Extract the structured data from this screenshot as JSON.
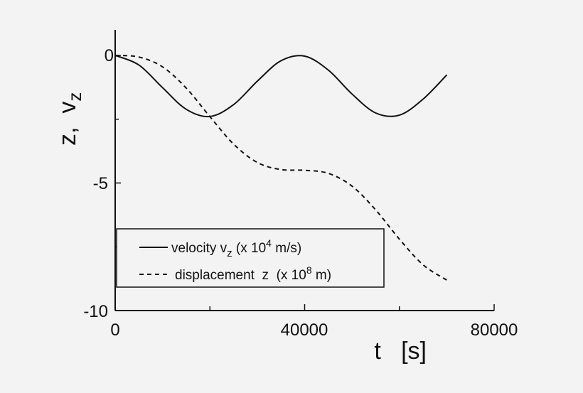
{
  "chart_data": {
    "type": "line",
    "title": "",
    "xlabel": "t   [s]",
    "ylabel": "z,  v",
    "ylabel_sub": "z",
    "xlim": [
      0,
      80000
    ],
    "ylim": [
      -10,
      1
    ],
    "xticks": [
      0,
      40000,
      80000
    ],
    "xtick_labels": [
      "0",
      "40000",
      "80000"
    ],
    "yticks": [
      0,
      -5,
      -10
    ],
    "ytick_labels": [
      "0",
      "-5",
      "-10"
    ],
    "grid": false,
    "legend_placement": "bottom-left",
    "x": [
      0,
      5000,
      10000,
      15000,
      20000,
      25000,
      30000,
      35000,
      40000,
      45000,
      50000,
      55000,
      60000,
      65000,
      70000
    ],
    "series": [
      {
        "name": "velocity v_z (x 10^4 m/s)",
        "legend": {
          "text": "velocity v",
          "sub": "z",
          "rest": " (x 10",
          "sup": "4",
          "tail": " m/s)"
        },
        "style": "solid",
        "color": "#111111",
        "values": [
          0,
          -0.374,
          -1.262,
          -2.112,
          -2.393,
          -1.928,
          -1.01,
          -0.21,
          -0.027,
          -0.575,
          -1.513,
          -2.256,
          -2.341,
          -1.713,
          -0.766
        ]
      },
      {
        "name": "displacement z (x 10^8 m)",
        "legend": {
          "text": "displacement  z  (x 10",
          "sup": "8",
          "tail": " m)"
        },
        "style": "dashed",
        "color": "#111111",
        "values": [
          0,
          -0.062,
          -0.448,
          -1.279,
          -2.4,
          -3.476,
          -4.195,
          -4.474,
          -4.501,
          -4.622,
          -5.123,
          -6.055,
          -7.2,
          -8.206,
          -8.807
        ]
      }
    ]
  }
}
